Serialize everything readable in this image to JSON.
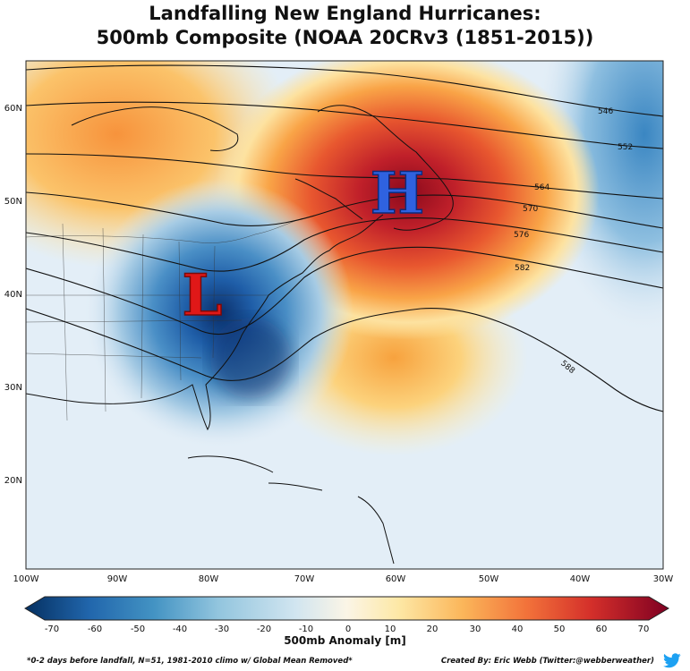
{
  "title": {
    "line1": "Landfalling New England Hurricanes:",
    "line2": "500mb Composite (NOAA 20CRv3 (1851-2015))"
  },
  "map": {
    "lat_labels": [
      "60N",
      "50N",
      "40N",
      "30N",
      "20N"
    ],
    "lat_values": [
      60,
      50,
      40,
      30,
      20
    ],
    "lon_labels": [
      "100W",
      "90W",
      "80W",
      "70W",
      "60W",
      "50W",
      "40W",
      "30W"
    ],
    "lon_values": [
      -100,
      -90,
      -80,
      -70,
      -60,
      -50,
      -40,
      -30
    ],
    "contour_labels": [
      "546",
      "552",
      "564",
      "570",
      "576",
      "582",
      "588"
    ],
    "high_label": "H",
    "low_label": "L",
    "high_color": "#2f62e0",
    "low_color": "#e01818"
  },
  "colorbar": {
    "title": "500mb Anomaly [m]",
    "ticks": [
      "-70",
      "-60",
      "-50",
      "-40",
      "-30",
      "-20",
      "-10",
      "0",
      "10",
      "20",
      "30",
      "40",
      "50",
      "60",
      "70"
    ],
    "tick_values": [
      -70,
      -60,
      -50,
      -40,
      -30,
      -20,
      -10,
      0,
      10,
      20,
      30,
      40,
      50,
      60,
      70
    ],
    "colors": [
      "#053061",
      "#2166ac",
      "#4393c3",
      "#92c5de",
      "#d1e5f0",
      "#f7f7f7",
      "#fddbc7",
      "#f4a582",
      "#d6604d",
      "#b2182b",
      "#67001f"
    ]
  },
  "footer": {
    "left": "*0-2 days before landfall, N=51, 1981-2010 climo w/ Global Mean Removed*",
    "right": "Created By: Eric Webb (Twitter:@webberweather)"
  },
  "icons": {
    "social": "twitter-bird-icon",
    "social_color": "#1da1f2"
  }
}
